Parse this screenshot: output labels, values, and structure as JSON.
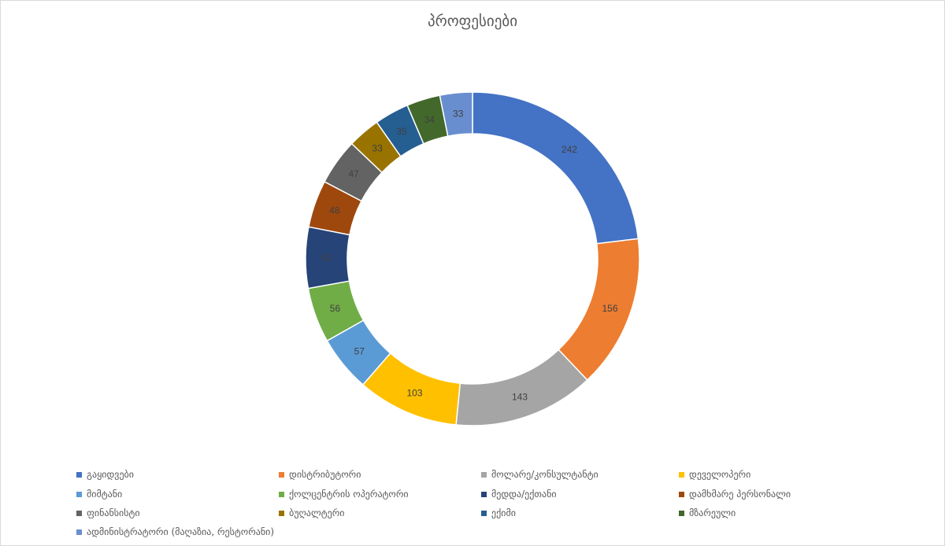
{
  "chart_data": {
    "type": "donut",
    "title": "პროფესიები",
    "legend_position": "bottom",
    "categories": [
      "გაყიდვები",
      "დისტრიბუტორი",
      "მოლარე/კონსულტანტი",
      "დეველოპერი",
      "მიმტანი",
      "ქოლცენტრის ოპერატორი",
      "მედდა/ექთანი",
      "დამხმარე პერსონალი",
      "ფინანსისტი",
      "ბუღალტერი",
      "ექიმი",
      "მზარეული",
      "ადმინისტრატორი (მაღაზია, რესტორანი)"
    ],
    "values": [
      242,
      156,
      143,
      103,
      57,
      56,
      62,
      48,
      47,
      33,
      35,
      34,
      33
    ],
    "colors": [
      "#4472C4",
      "#ED7D31",
      "#A5A5A5",
      "#FFC000",
      "#5B9BD5",
      "#70AD47",
      "#264478",
      "#9E480E",
      "#636363",
      "#997300",
      "#255E91",
      "#43682B",
      "#698ED0"
    ]
  }
}
